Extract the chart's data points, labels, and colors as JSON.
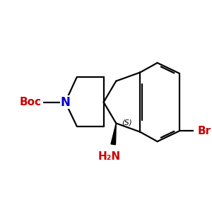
{
  "background_color": "#ffffff",
  "bond_color": "#000000",
  "n_color": "#0000cc",
  "red_color": "#cc0000",
  "line_width": 1.6,
  "figsize": [
    3.0,
    3.0
  ],
  "dpi": 100,
  "xlim": [
    0,
    10
  ],
  "ylim": [
    0,
    10
  ],
  "spiro_x": 5.3,
  "spiro_y": 5.2
}
